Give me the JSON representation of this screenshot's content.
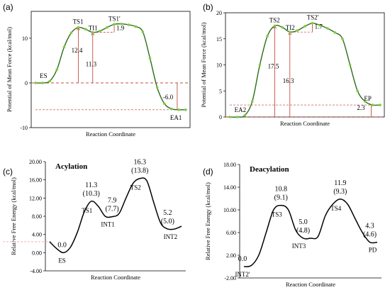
{
  "chart_data": [
    {
      "panel": "(a)",
      "type": "line",
      "ylabel": "Potential of Mean Force (kcal/mol)",
      "xlabel": "Reaction Coordinate",
      "ylim": [
        -10,
        16
      ],
      "yticks": [
        "10",
        "0",
        "-10"
      ],
      "curve_color": "#2e6b1e",
      "point_color": "#7ecb3a",
      "series": [
        {
          "values": [
            0,
            0,
            0.4,
            3,
            8,
            11.2,
            12.4,
            12.0,
            11.3,
            11.6,
            12.4,
            13.1,
            13.2,
            13.0,
            12.6,
            11.4,
            5.5,
            -1,
            -4.6,
            -5.8,
            -6.0,
            -6.0
          ]
        }
      ],
      "points": [
        {
          "label": "ES",
          "value": 0
        },
        {
          "label": "TS1",
          "value": 12.4
        },
        {
          "label": "TI1",
          "value": 11.3
        },
        {
          "label": "TS1'",
          "value": 13.2
        },
        {
          "label": "EA1",
          "value": -6.0
        }
      ],
      "annotations": [
        "12.4",
        "11.3",
        "1.9",
        "-6.0"
      ]
    },
    {
      "panel": "(b)",
      "type": "line",
      "ylabel": "Potential of Mean Force (kcal/mol)",
      "xlabel": "Reaction Coordinate",
      "ylim": [
        0,
        20
      ],
      "yticks": [
        "20",
        "15",
        "10",
        "5",
        "0"
      ],
      "curve_color": "#2e6b1e",
      "point_color": "#7ecb3a",
      "series": [
        {
          "values": [
            0,
            0,
            0.3,
            3,
            10,
            15.5,
            17.5,
            17.2,
            16.3,
            16.6,
            17.4,
            18.0,
            17.6,
            17.0,
            16.2,
            15.0,
            10,
            5,
            3,
            2.3,
            2.3
          ]
        }
      ],
      "points": [
        {
          "label": "EA2",
          "value": 0
        },
        {
          "label": "TS2",
          "value": 17.5
        },
        {
          "label": "TI2",
          "value": 16.3
        },
        {
          "label": "TS2'",
          "value": 18.0
        },
        {
          "label": "EP",
          "value": 2.3
        }
      ],
      "annotations": [
        "17.5",
        "16.3",
        "1.7",
        "2.3"
      ]
    },
    {
      "panel": "(c)",
      "type": "line",
      "title": "Acylation",
      "ylabel": "Relative Free Energy (kcal/mol)",
      "xlabel": "Reaction Coordinate",
      "ylim": [
        -4,
        20
      ],
      "yticks": [
        "20.00",
        "16.00",
        "12.00",
        "8.00",
        "4.00",
        "0.00",
        "-4.00"
      ],
      "series": [
        {
          "values": [
            2.4,
            0.9,
            0.0,
            1.2,
            4.5,
            9.0,
            11.3,
            10.2,
            8.0,
            7.9,
            8.6,
            12.0,
            15.2,
            16.3,
            15.8,
            11.0,
            6.5,
            5.2,
            5.2,
            5.8
          ]
        }
      ],
      "points": [
        {
          "label": "ES",
          "value": 0.0,
          "text": "0.0"
        },
        {
          "label": "TS1",
          "value": 11.3,
          "text": "11.3",
          "sub": "(10.3)"
        },
        {
          "label": "INT1",
          "value": 7.9,
          "text": "7.9",
          "sub": "(7.7)"
        },
        {
          "label": "TS2",
          "value": 16.3,
          "text": "16.3",
          "sub": "(13.8)"
        },
        {
          "label": "INT2",
          "value": 5.2,
          "text": "5.2",
          "sub": "(5.0)"
        }
      ]
    },
    {
      "panel": "(d)",
      "type": "line",
      "title": "Deacylation",
      "ylabel": "Relative Free Energy (kcal/mol)",
      "xlabel": "Reaction Coordinate",
      "ylim": [
        -2,
        18
      ],
      "yticks": [
        "18.00",
        "14.00",
        "10.00",
        "6.00",
        "2.00",
        "-2.00"
      ],
      "series": [
        {
          "values": [
            0.0,
            0.2,
            2.0,
            6.0,
            10.0,
            10.8,
            10.0,
            6.4,
            5.0,
            5.0,
            5.3,
            9.0,
            11.0,
            11.9,
            11.0,
            8.5,
            6.0,
            4.3,
            4.3
          ]
        }
      ],
      "points": [
        {
          "label": "INT2'",
          "value": 0.0,
          "text": "0.0"
        },
        {
          "label": "TS3",
          "value": 10.8,
          "text": "10.8",
          "sub": "(9.1)"
        },
        {
          "label": "INT3",
          "value": 5.0,
          "text": "5.0",
          "sub": "(4.8)"
        },
        {
          "label": "TS4",
          "value": 11.9,
          "text": "11.9",
          "sub": "(9.3)"
        },
        {
          "label": "PD",
          "value": 4.3,
          "text": "4.3",
          "sub": "(4.6)"
        }
      ]
    }
  ]
}
